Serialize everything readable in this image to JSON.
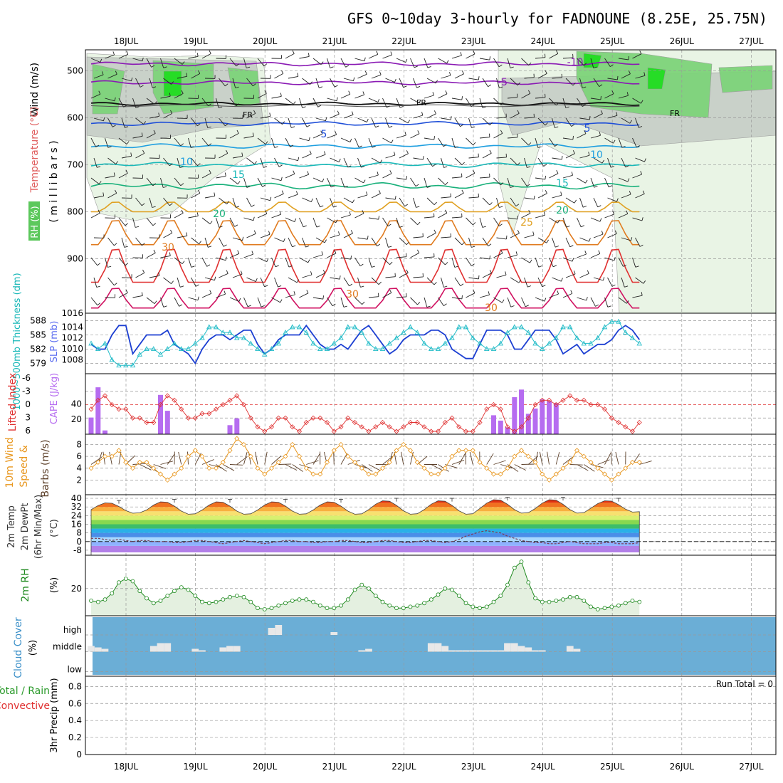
{
  "title": "GFS 0~10day 3-hourly for FADNOUNE (8.25E, 25.75N)",
  "colors": {
    "grid": "#999999",
    "rh_light": "#e8f4e4",
    "rh_mid": "#7ed47a",
    "rh_high": "#22dd22",
    "rh_gray": "#c8d0c8",
    "fr": "#000000",
    "thickness": "#1c3fd2",
    "slp": "#22bcc8",
    "lifted": "#e03030",
    "cape": "#b66cf0",
    "wind": "#e8961c",
    "barb": "#5a3d26",
    "cloud_bg": "#6baed6",
    "cloud_fg": "#e8e8e8",
    "rh2m": "#1f8a1f",
    "dewpt": "#7a3b52"
  },
  "chart_data": {
    "type": "meteogram",
    "dates": [
      "18JUL",
      "19JUL",
      "20JUL",
      "21JUL",
      "22JUL",
      "23JUL",
      "24JUL",
      "25JUL",
      "26JUL",
      "27JUL"
    ],
    "upper_air": {
      "ylabel_parts": [
        "RH (%)",
        "Temperature (°C)",
        "Wind (m/s)"
      ],
      "ylabel_sub": "( m i l l i b a r s )",
      "yticks": [
        500,
        600,
        700,
        800,
        900,
        1016
      ],
      "contour_labels": [
        "-10",
        "-5",
        "FR",
        "FR",
        "FR",
        "5",
        "5",
        "10",
        "10",
        "15",
        "15",
        "20",
        "20",
        "25",
        "30",
        "30",
        "30"
      ],
      "isotherms": [
        {
          "t": -10,
          "p": 485,
          "amp": 6,
          "color": "#8a1ab4"
        },
        {
          "t": -5,
          "p": 525,
          "amp": 6,
          "color": "#8a1ab4"
        },
        {
          "t": 0,
          "p": 570,
          "amp": 5,
          "color": "#111111"
        },
        {
          "t": 5,
          "p": 612,
          "amp": 6,
          "color": "#1f4fd8"
        },
        {
          "t": 10,
          "p": 660,
          "amp": 7,
          "color": "#1f9fe0"
        },
        {
          "t": 15,
          "p": 700,
          "amp": 8,
          "color": "#19b8b8"
        },
        {
          "t": 20,
          "p": 745,
          "amp": 10,
          "color": "#17b07a"
        },
        {
          "t": 25,
          "p": 800,
          "amp": 22,
          "color": "#e0a020"
        },
        {
          "t": 30,
          "p": 870,
          "amp": 55,
          "color": "#e07b1f"
        },
        {
          "t": 35,
          "p": 950,
          "amp": 75,
          "color": "#e03030"
        },
        {
          "t": 40,
          "p": 1005,
          "amp": 45,
          "color": "#d01060"
        }
      ]
    },
    "thickness_slp": {
      "ylabel_left": "1000~500mb Thickness (dm)",
      "ylabel_right": "SLP (mb)",
      "thickness_ticks": [
        579,
        582,
        585,
        588
      ],
      "slp_ticks": [
        1008,
        1010,
        1012,
        1014
      ],
      "thickness": [
        583,
        582,
        582,
        585,
        587,
        587,
        581,
        583,
        585,
        585,
        585,
        586,
        583,
        582,
        581,
        579,
        582,
        584,
        585,
        585,
        584,
        585,
        586,
        586,
        583,
        581,
        582,
        584,
        585,
        585,
        585,
        587,
        585,
        583,
        582,
        582,
        583,
        582,
        584,
        586,
        587,
        585,
        583,
        581,
        582,
        584,
        585,
        585,
        585,
        586,
        586,
        585,
        582,
        581,
        580,
        580,
        583,
        586,
        586,
        586,
        585,
        582,
        582,
        584,
        586,
        586,
        586,
        584,
        581,
        582,
        583,
        581,
        582,
        583,
        583,
        584,
        586,
        587,
        586,
        584
      ],
      "slp": [
        1011,
        1010,
        1011,
        1008,
        1007,
        1007,
        1007,
        1009,
        1010,
        1010,
        1009,
        1010,
        1011,
        1010,
        1010,
        1011,
        1012,
        1014,
        1014,
        1013,
        1013,
        1012,
        1012,
        1011,
        1010,
        1009,
        1010,
        1011,
        1013,
        1014,
        1014,
        1013,
        1011,
        1010,
        1010,
        1011,
        1012,
        1014,
        1014,
        1013,
        1011,
        1010,
        1010,
        1011,
        1012,
        1013,
        1014,
        1013,
        1011,
        1010,
        1010,
        1011,
        1012,
        1014,
        1014,
        1012,
        1011,
        1010,
        1010,
        1011,
        1013,
        1014,
        1014,
        1013,
        1011,
        1010,
        1011,
        1012,
        1014,
        1014,
        1012,
        1011,
        1011,
        1012,
        1014,
        1015,
        1015,
        1013,
        1012,
        1011
      ]
    },
    "instability": {
      "ylabel_left": "Lifted Index",
      "ylabel_right": "CAPE (J/kg)",
      "li_ticks": [
        "-6",
        "-3",
        "0",
        "3",
        "6"
      ],
      "cape_ticks": [
        20,
        40
      ],
      "lifted_index": [
        1,
        -1,
        -2,
        0,
        1,
        1,
        3,
        3,
        4,
        4,
        0,
        -2,
        -1,
        1,
        3,
        3,
        2,
        2,
        1,
        0,
        -1,
        -2,
        0,
        3,
        5,
        6,
        5,
        3,
        3,
        5,
        6,
        4,
        3,
        3,
        4,
        6,
        5,
        3,
        4,
        5,
        6,
        5,
        4,
        5,
        6,
        5,
        4,
        4,
        5,
        6,
        6,
        4,
        3,
        5,
        6,
        6,
        4,
        1,
        0,
        1,
        5,
        6,
        5,
        3,
        0,
        -1,
        -1,
        0,
        -1,
        -2,
        -1,
        -1,
        0,
        0,
        1,
        3,
        4,
        5,
        6,
        4
      ],
      "cape": [
        22,
        62,
        5,
        0,
        0,
        0,
        0,
        0,
        0,
        0,
        52,
        31,
        0,
        0,
        0,
        0,
        0,
        0,
        0,
        0,
        12,
        21,
        0,
        0,
        0,
        0,
        0,
        0,
        0,
        0,
        0,
        0,
        0,
        0,
        0,
        0,
        0,
        0,
        0,
        0,
        0,
        0,
        0,
        0,
        0,
        0,
        0,
        0,
        0,
        0,
        0,
        0,
        0,
        0,
        0,
        0,
        0,
        0,
        25,
        18,
        9,
        49,
        59,
        27,
        34,
        46,
        44,
        41,
        0,
        0,
        0,
        0,
        0,
        0,
        0,
        0,
        0,
        0,
        0,
        0
      ]
    },
    "wind10m": {
      "ylabel": "10m Wind Speed & Barbs (m/s)",
      "ticks": [
        2,
        4,
        6,
        8
      ],
      "speed": [
        4,
        5,
        6,
        6,
        7,
        5,
        4,
        5,
        5,
        4,
        3,
        2,
        3,
        4,
        6,
        7,
        6,
        4,
        4,
        5,
        7,
        9,
        8,
        6,
        4,
        3,
        4,
        5,
        6,
        8,
        6,
        4,
        3,
        3,
        5,
        7,
        8,
        6,
        5,
        4,
        3,
        3,
        4,
        5,
        7,
        8,
        7,
        5,
        4,
        3,
        3,
        4,
        6,
        7,
        7,
        7,
        5,
        4,
        3,
        3,
        4,
        6,
        7,
        6,
        5,
        3,
        2,
        3,
        4,
        5,
        7,
        6,
        5,
        4,
        3,
        2,
        3,
        4,
        5,
        5
      ]
    },
    "temp2m": {
      "ylabel_lines": [
        "2m Temp",
        "2m DewPt",
        "(6hr Min/Max)"
      ],
      "unit": "(°C)",
      "ticks": [
        "-8",
        "0",
        "8",
        "16",
        "24",
        "32",
        "40"
      ],
      "max": [
        36,
        37,
        37,
        37,
        37,
        38,
        38,
        39,
        39,
        38
      ],
      "min": [
        26,
        25,
        25,
        25,
        25,
        25,
        25,
        26,
        26,
        27
      ],
      "dewpt": [
        3,
        3,
        2,
        1,
        2,
        1,
        0,
        1,
        1,
        0,
        0,
        0,
        -1,
        -1,
        0,
        1,
        1,
        0,
        -1,
        -2,
        -1,
        0,
        1,
        0,
        -1,
        -2,
        -1,
        0,
        1,
        1,
        0,
        0,
        -1,
        -1,
        0,
        0,
        1,
        1,
        0,
        -1,
        -1,
        0,
        1,
        1,
        0,
        -1,
        -1,
        0,
        1,
        1,
        0,
        -1,
        0,
        2,
        5,
        7,
        9,
        10,
        9,
        8,
        5,
        3,
        1,
        0,
        -1,
        -1,
        -2,
        -2,
        -1,
        0,
        -1,
        -2,
        -2,
        -2,
        -1,
        -1,
        -2,
        -2,
        -2,
        -1
      ]
    },
    "rh2m": {
      "ylabel": "2m RH",
      "unit": "(%)",
      "ticks": [
        20
      ],
      "values": [
        10,
        9,
        11,
        16,
        25,
        28,
        26,
        18,
        12,
        8,
        10,
        14,
        18,
        21,
        19,
        14,
        9,
        8,
        9,
        11,
        13,
        14,
        13,
        9,
        4,
        3,
        4,
        6,
        8,
        10,
        11,
        11,
        9,
        6,
        4,
        4,
        6,
        11,
        19,
        23,
        20,
        14,
        9,
        6,
        4,
        4,
        5,
        6,
        8,
        11,
        15,
        20,
        19,
        14,
        8,
        5,
        4,
        5,
        9,
        14,
        23,
        37,
        42,
        25,
        12,
        9,
        9,
        10,
        11,
        13,
        13,
        10,
        5,
        3,
        4,
        5,
        6,
        8,
        10,
        9
      ]
    },
    "cloud": {
      "ylabel": "Cloud Cover (%)",
      "levels": [
        "high",
        "middle",
        "low"
      ],
      "middle": [
        20,
        15,
        10,
        0,
        0,
        0,
        0,
        0,
        0,
        20,
        30,
        30,
        0,
        0,
        0,
        10,
        5,
        0,
        0,
        15,
        20,
        20,
        0,
        0,
        0,
        0,
        0,
        0,
        0,
        0,
        0,
        0,
        0,
        0,
        0,
        0,
        0,
        0,
        0,
        0,
        0,
        0,
        0,
        0,
        0,
        0,
        0,
        0,
        0,
        0,
        0,
        0,
        0,
        0,
        0,
        0,
        0,
        0,
        0,
        0,
        0,
        0,
        0,
        0,
        0,
        0,
        0,
        0,
        0,
        0,
        0,
        0,
        0,
        0,
        0,
        0,
        0,
        0,
        0,
        0
      ],
      "high": [
        0,
        0,
        0,
        0,
        0,
        0,
        0,
        0,
        0,
        0,
        0,
        0,
        0,
        0,
        0,
        0,
        0,
        0,
        0,
        0,
        0,
        0,
        0,
        0,
        0,
        0,
        0,
        0,
        0,
        0,
        0,
        0,
        0,
        0,
        0,
        0,
        0,
        0,
        0,
        0,
        0,
        0,
        0,
        0,
        0,
        0,
        0,
        0,
        0,
        0,
        0,
        0,
        0,
        0,
        0,
        0,
        0,
        0,
        0,
        0,
        0,
        0,
        0,
        0,
        0,
        0,
        0,
        0,
        0,
        0,
        0,
        0,
        0,
        0,
        0,
        0,
        0,
        0,
        0,
        0
      ],
      "high_events": [
        [
          26,
          25
        ],
        [
          27,
          35
        ],
        [
          35,
          10
        ]
      ],
      "mid_extra": [
        [
          39,
          5
        ],
        [
          40,
          10
        ],
        [
          49,
          30
        ],
        [
          50,
          30
        ],
        [
          51,
          20
        ],
        [
          52,
          5
        ],
        [
          53,
          5
        ],
        [
          54,
          5
        ],
        [
          55,
          5
        ],
        [
          56,
          5
        ],
        [
          57,
          5
        ],
        [
          58,
          5
        ],
        [
          59,
          5
        ],
        [
          60,
          30
        ],
        [
          61,
          30
        ],
        [
          62,
          20
        ],
        [
          63,
          15
        ],
        [
          64,
          5
        ],
        [
          65,
          5
        ],
        [
          69,
          20
        ],
        [
          70,
          10
        ]
      ]
    },
    "precip": {
      "ylabel_lines": [
        "Total / Rain",
        "Convective",
        "3hr Precip (mm)"
      ],
      "ticks": [
        "0",
        "0.2",
        "0.4",
        "0.6",
        "0.8"
      ],
      "run_total": "Run Total = 0",
      "values": [
        0,
        0,
        0,
        0,
        0,
        0,
        0,
        0,
        0,
        0
      ]
    }
  }
}
